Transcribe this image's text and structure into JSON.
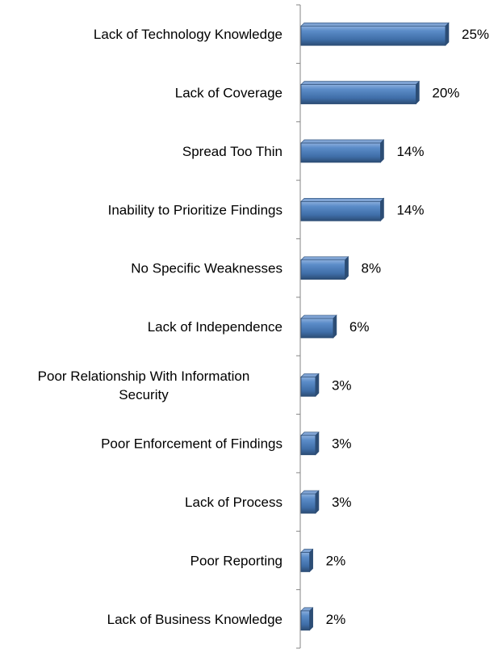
{
  "chart_data": {
    "type": "bar",
    "orientation": "horizontal",
    "categories": [
      "Lack of Technology Knowledge",
      "Lack of Coverage",
      "Spread Too Thin",
      "Inability to Prioritize Findings",
      "No Specific Weaknesses",
      "Lack of Independence",
      "Poor Relationship With Information Security",
      "Poor Enforcement of Findings",
      "Lack of Process",
      "Poor Reporting",
      "Lack of Business Knowledge"
    ],
    "category_lines": [
      [
        "Lack of Technology Knowledge"
      ],
      [
        "Lack of Coverage"
      ],
      [
        "Spread Too Thin"
      ],
      [
        "Inability to Prioritize Findings"
      ],
      [
        "No Specific Weaknesses"
      ],
      [
        "Lack of Independence"
      ],
      [
        "Poor Relationship With Information",
        "Security"
      ],
      [
        "Poor Enforcement of Findings"
      ],
      [
        "Lack of Process"
      ],
      [
        "Poor Reporting"
      ],
      [
        "Lack of Business Knowledge"
      ]
    ],
    "values": [
      25,
      20,
      14,
      14,
      8,
      6,
      3,
      3,
      3,
      2,
      2
    ],
    "value_labels": [
      "25%",
      "20%",
      "14%",
      "14%",
      "8%",
      "6%",
      "3%",
      "3%",
      "3%",
      "2%",
      "2%"
    ],
    "xlim": [
      0,
      25
    ],
    "grid": false,
    "legend": "none",
    "colors": {
      "bar_fill": "#4f81bd",
      "bar_dark": "#2c4d75",
      "bar_light": "#7fa3d3",
      "axis": "#868686"
    }
  }
}
